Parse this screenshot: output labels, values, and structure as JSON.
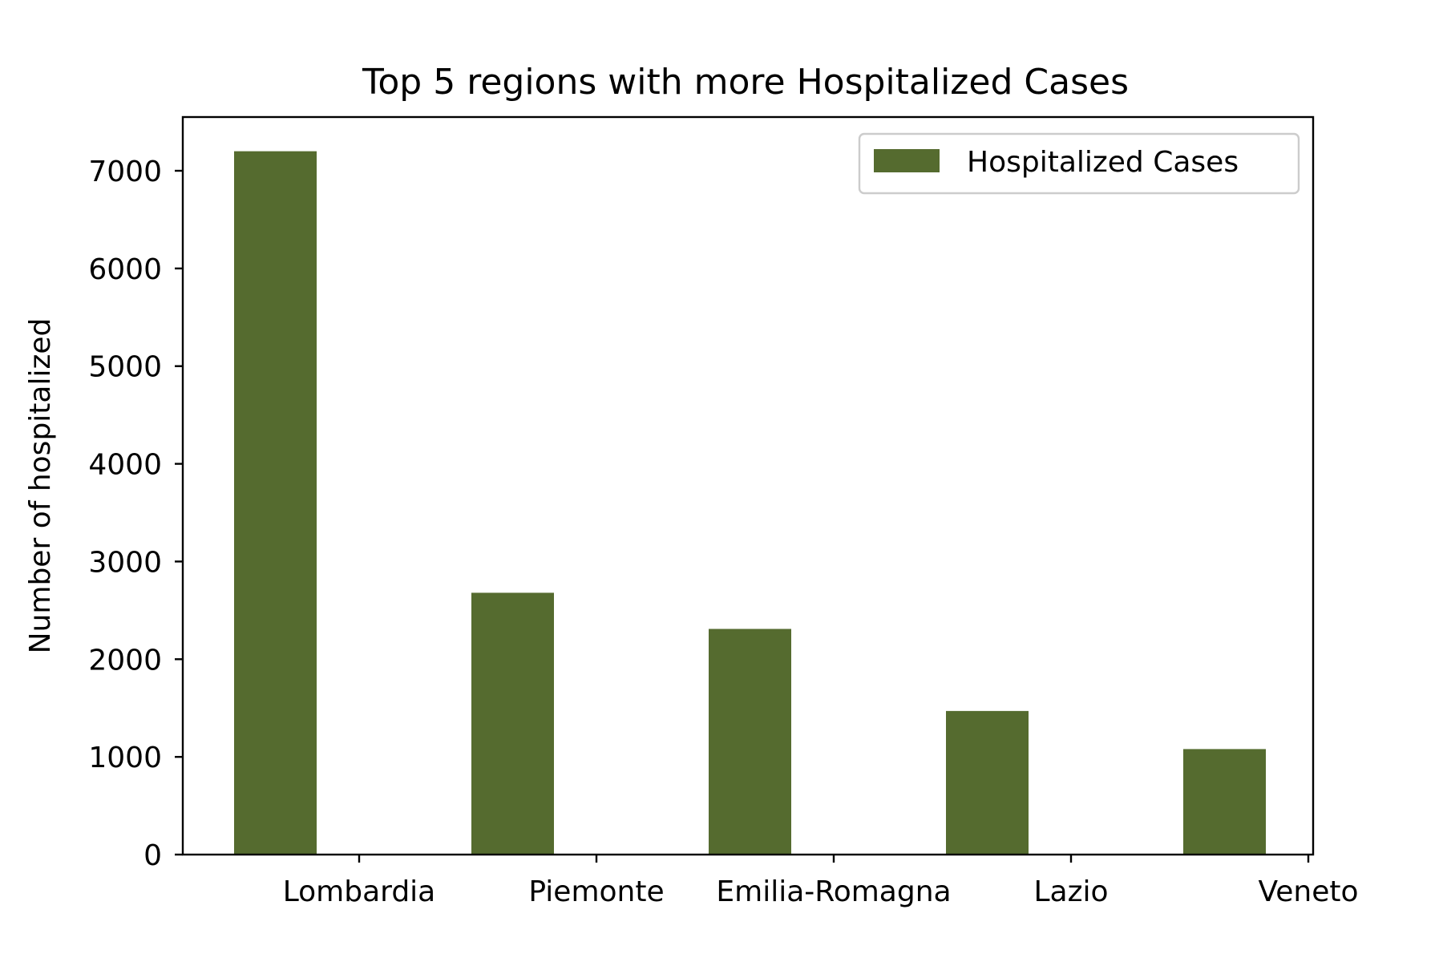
{
  "chart_data": {
    "type": "bar",
    "title": "Top 5 regions with more Hospitalized Cases",
    "xlabel": "",
    "ylabel": "Number of hospitalized",
    "categories": [
      "Lombardia",
      "Piemonte",
      "Emilia-Romagna",
      "Lazio",
      "Veneto"
    ],
    "series": [
      {
        "name": "Hospitalized Cases",
        "values": [
          7200,
          2680,
          2310,
          1470,
          1080
        ],
        "color": "#556b2f"
      }
    ],
    "ylim": [
      0,
      7550
    ],
    "yticks": [
      "0",
      "1000",
      "2000",
      "3000",
      "4000",
      "5000",
      "6000",
      "7000"
    ],
    "grid": false,
    "legend": "top-right"
  }
}
